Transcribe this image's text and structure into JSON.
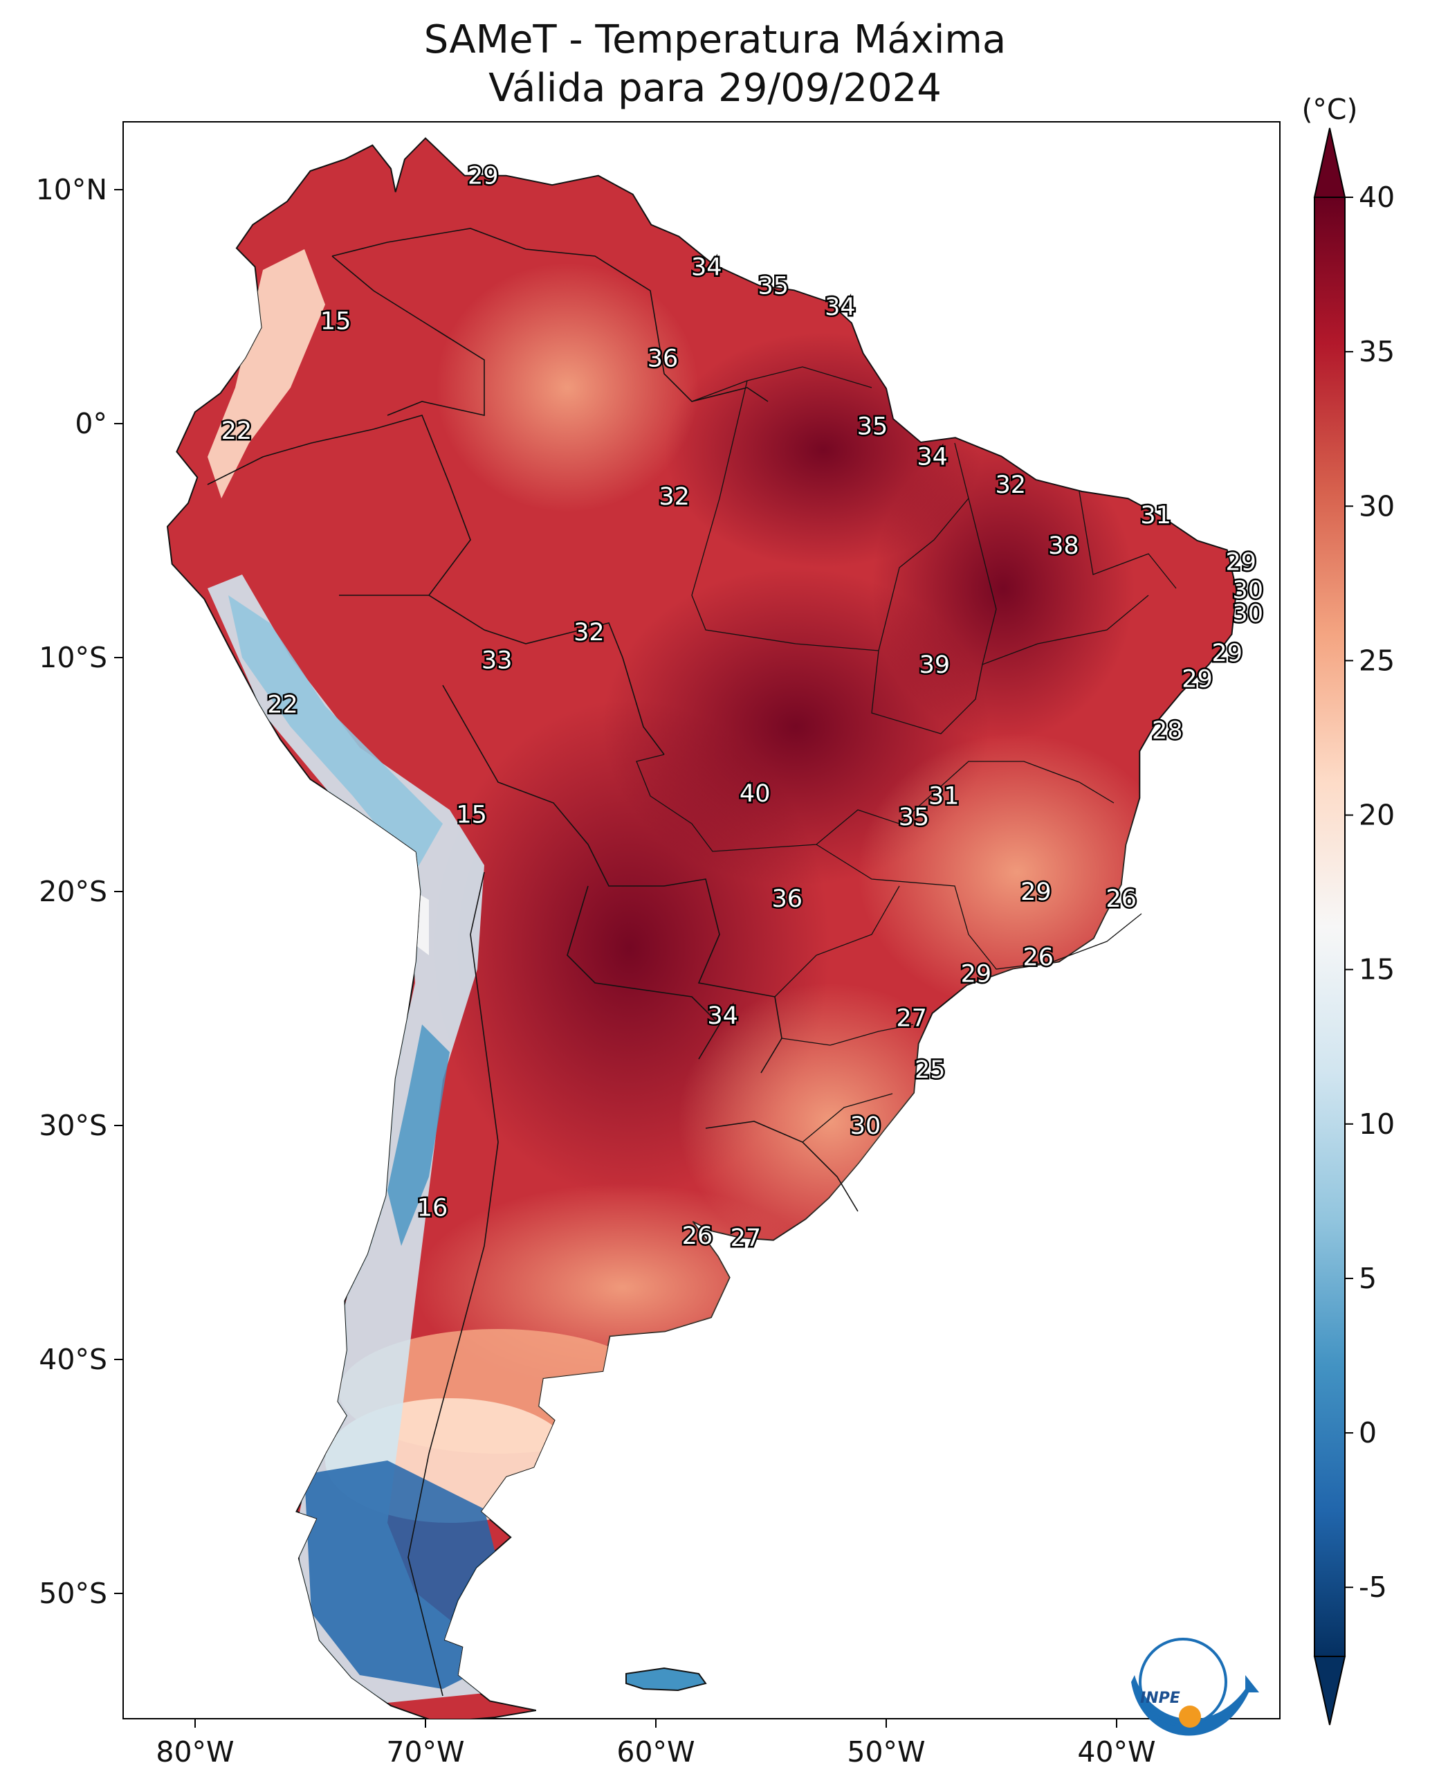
{
  "title": {
    "line1": "SAMeT - Temperatura Máxima",
    "line2": "Válida para 29/09/2024"
  },
  "colorbar": {
    "unit": "(°C)",
    "ticks": [
      "40",
      "35",
      "30",
      "25",
      "20",
      "15",
      "10",
      "5",
      "0",
      "-5"
    ],
    "colors": [
      "#67001f",
      "#b2182b",
      "#d6604d",
      "#f4a582",
      "#fddbc7",
      "#f7f7f7",
      "#d1e5f0",
      "#92c5de",
      "#4393c3",
      "#2166ac",
      "#053061"
    ]
  },
  "axes": {
    "lon_labels": [
      "80°W",
      "70°W",
      "60°W",
      "50°W",
      "40°W"
    ],
    "lat_labels": [
      "10°N",
      "0°",
      "10°S",
      "20°S",
      "30°S",
      "40°S",
      "50°S"
    ]
  },
  "temperature_labels": [
    {
      "value": "29",
      "lon": -67.5,
      "lat": 10.6
    },
    {
      "value": "34",
      "lon": -57.8,
      "lat": 6.7
    },
    {
      "value": "35",
      "lon": -54.9,
      "lat": 5.9
    },
    {
      "value": "34",
      "lon": -52.0,
      "lat": 5.0
    },
    {
      "value": "15",
      "lon": -73.9,
      "lat": 4.4
    },
    {
      "value": "36",
      "lon": -59.7,
      "lat": 2.8
    },
    {
      "value": "22",
      "lon": -78.2,
      "lat": -0.3
    },
    {
      "value": "35",
      "lon": -50.6,
      "lat": -0.1
    },
    {
      "value": "34",
      "lon": -48.0,
      "lat": -1.4
    },
    {
      "value": "32",
      "lon": -44.6,
      "lat": -2.6
    },
    {
      "value": "32",
      "lon": -59.2,
      "lat": -3.1
    },
    {
      "value": "31",
      "lon": -38.3,
      "lat": -3.9
    },
    {
      "value": "38",
      "lon": -42.3,
      "lat": -5.2
    },
    {
      "value": "29",
      "lon": -34.6,
      "lat": -5.9
    },
    {
      "value": "30",
      "lon": -34.3,
      "lat": -7.1
    },
    {
      "value": "30",
      "lon": -34.3,
      "lat": -8.1
    },
    {
      "value": "32",
      "lon": -62.9,
      "lat": -8.9
    },
    {
      "value": "29",
      "lon": -35.2,
      "lat": -9.8
    },
    {
      "value": "33",
      "lon": -66.9,
      "lat": -10.1
    },
    {
      "value": "39",
      "lon": -47.9,
      "lat": -10.3
    },
    {
      "value": "29",
      "lon": -36.5,
      "lat": -10.9
    },
    {
      "value": "22",
      "lon": -76.2,
      "lat": -12.0
    },
    {
      "value": "28",
      "lon": -37.8,
      "lat": -13.1
    },
    {
      "value": "40",
      "lon": -55.7,
      "lat": -15.8
    },
    {
      "value": "31",
      "lon": -47.5,
      "lat": -15.9
    },
    {
      "value": "15",
      "lon": -68.0,
      "lat": -16.7
    },
    {
      "value": "35",
      "lon": -48.8,
      "lat": -16.8
    },
    {
      "value": "29",
      "lon": -43.5,
      "lat": -20.0
    },
    {
      "value": "36",
      "lon": -54.3,
      "lat": -20.3
    },
    {
      "value": "26",
      "lon": -39.8,
      "lat": -20.3
    },
    {
      "value": "26",
      "lon": -43.4,
      "lat": -22.8
    },
    {
      "value": "29",
      "lon": -46.1,
      "lat": -23.5
    },
    {
      "value": "34",
      "lon": -57.1,
      "lat": -25.3
    },
    {
      "value": "27",
      "lon": -48.9,
      "lat": -25.4
    },
    {
      "value": "25",
      "lon": -48.1,
      "lat": -27.6
    },
    {
      "value": "30",
      "lon": -50.9,
      "lat": -30.0
    },
    {
      "value": "16",
      "lon": -69.7,
      "lat": -33.5
    },
    {
      "value": "26",
      "lon": -58.2,
      "lat": -34.7
    },
    {
      "value": "27",
      "lon": -56.1,
      "lat": -34.8
    }
  ]
}
